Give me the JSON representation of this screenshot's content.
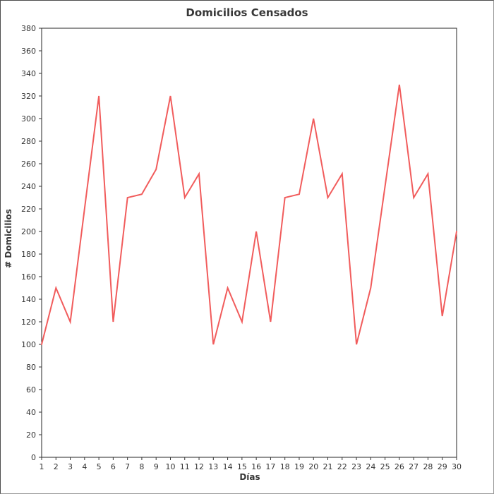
{
  "chart_data": {
    "type": "line",
    "title": "Domicilios Censados",
    "xlabel": "Días",
    "ylabel": "# Domicilios",
    "x": [
      1,
      2,
      3,
      4,
      5,
      6,
      7,
      8,
      9,
      10,
      11,
      12,
      13,
      14,
      15,
      16,
      17,
      18,
      19,
      20,
      21,
      22,
      23,
      24,
      25,
      26,
      27,
      28,
      29,
      30
    ],
    "values": [
      100,
      150,
      120,
      220,
      320,
      120,
      230,
      233,
      255,
      320,
      230,
      251,
      100,
      150,
      120,
      200,
      120,
      230,
      233,
      300,
      230,
      251,
      100,
      150,
      240,
      330,
      230,
      251,
      125,
      200
    ],
    "ylim": [
      0,
      380
    ],
    "ytick_step": 20,
    "grid": false,
    "legend": "none",
    "line_color": "#f15c5c",
    "axis_color": "#262626",
    "tick_color": "#333333",
    "text_color": "#383838"
  }
}
